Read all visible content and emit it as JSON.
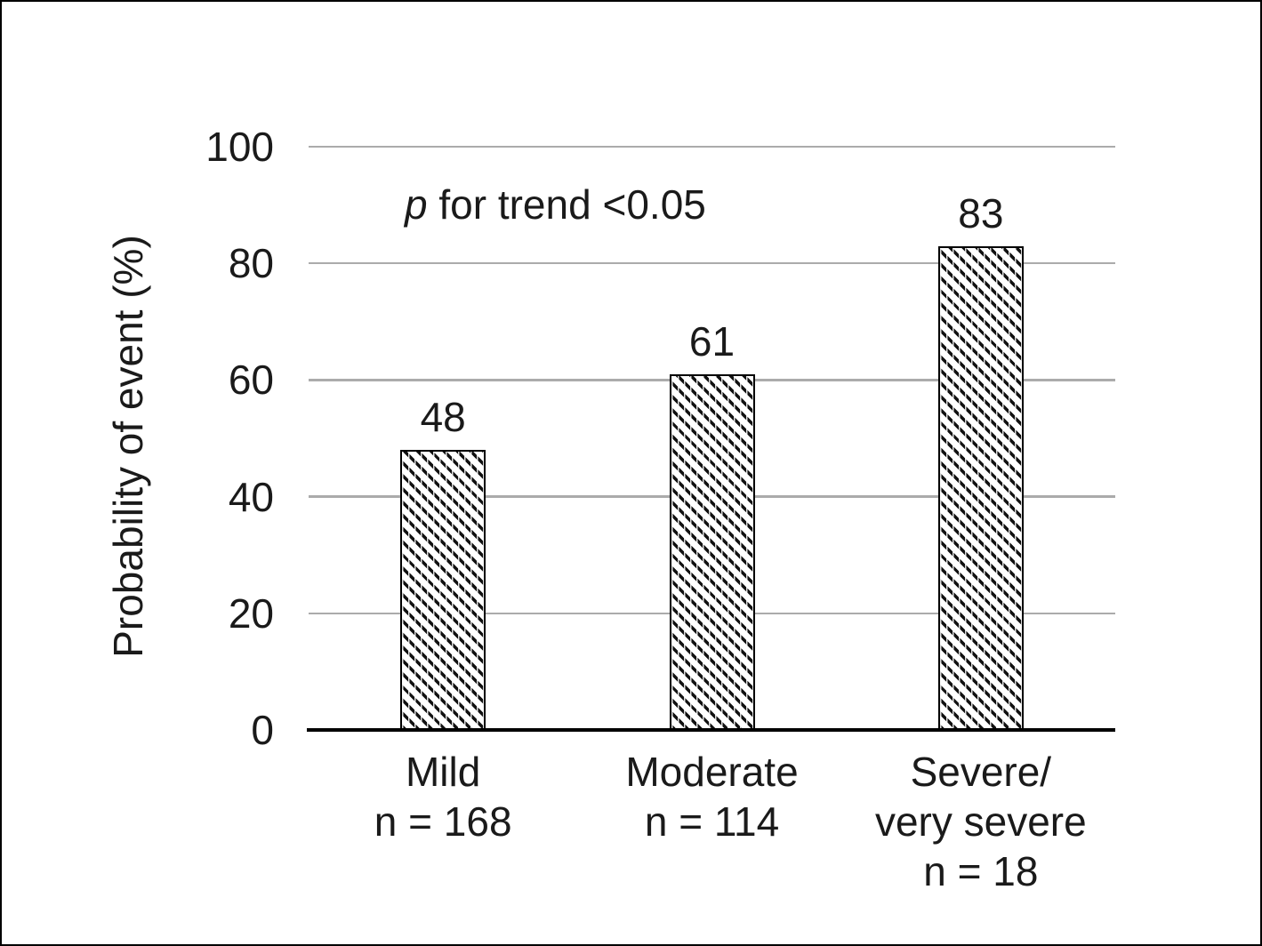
{
  "figure": {
    "background": "#ffffff",
    "border_color": "#000000"
  },
  "chart_data": {
    "type": "bar",
    "title": "",
    "xlabel": "",
    "ylabel": "Probability of event (%)",
    "ylim": [
      0,
      100
    ],
    "yticks": [
      0,
      20,
      40,
      60,
      80,
      100
    ],
    "grid": true,
    "legend": null,
    "annotation": {
      "italic": "p",
      "rest": " for trend <0.05"
    },
    "categories": [
      "Mild",
      "Moderate",
      "Severe/very severe"
    ],
    "category_label_lines": [
      [
        "Mild",
        "n = 168"
      ],
      [
        "Moderate",
        "n = 114"
      ],
      [
        "Severe/",
        "very severe",
        "n = 18"
      ]
    ],
    "sample_sizes": [
      168,
      114,
      18
    ],
    "values": [
      48,
      61,
      83
    ],
    "value_labels": [
      "48",
      "61",
      "83"
    ],
    "style": {
      "bar_fill": "diagonal-hatch-down",
      "bar_stroke": "#000000",
      "gridline_color": "#ABABAB",
      "axis_color": "#000000",
      "text_color": "#1a1a1a"
    }
  }
}
